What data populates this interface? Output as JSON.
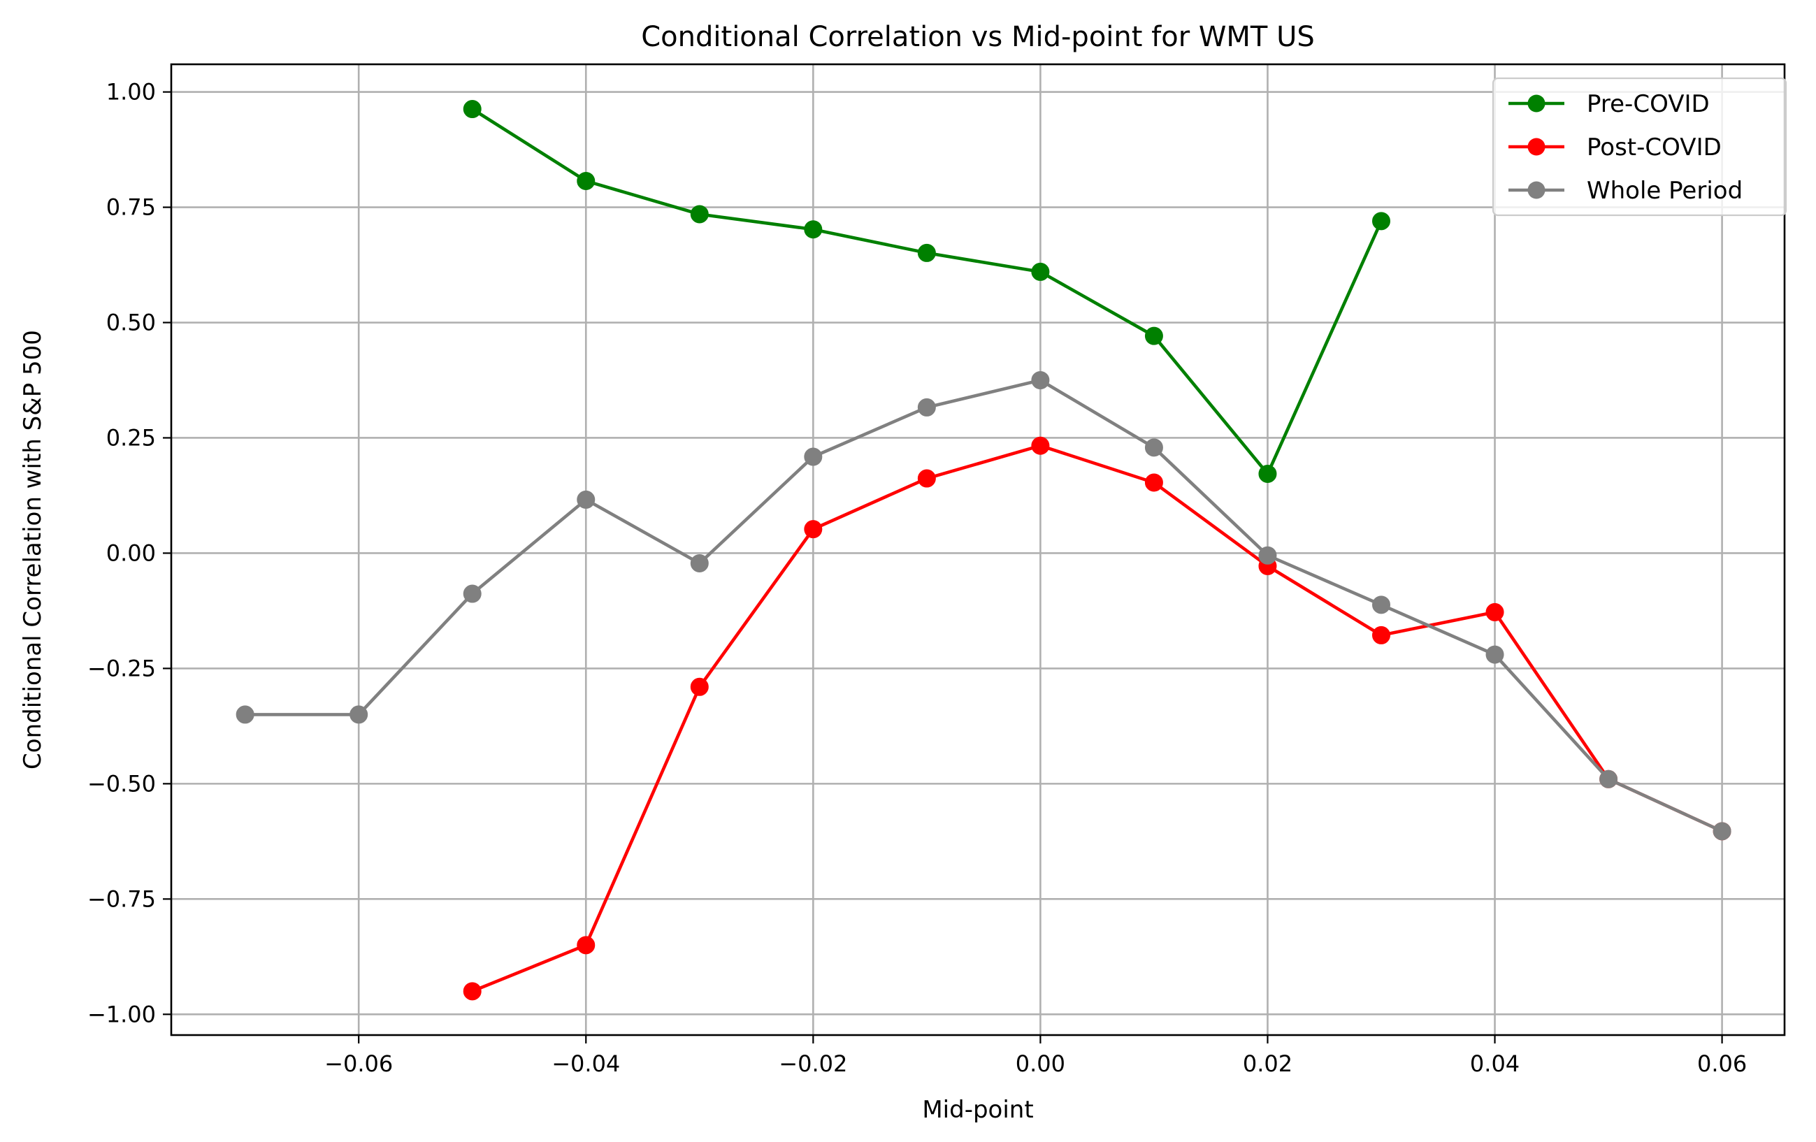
{
  "chart_data": {
    "type": "line",
    "title": "Conditional Correlation vs Mid-point for WMT US",
    "xlabel": "Mid-point",
    "ylabel": "Conditional Correlation with S&P 500",
    "xlim": [
      -0.0765,
      0.0655
    ],
    "ylim": [
      -1.045,
      1.06
    ],
    "xticks": [
      -0.06,
      -0.04,
      -0.02,
      0.0,
      0.02,
      0.04,
      0.06
    ],
    "xtick_labels": [
      "−0.06",
      "−0.04",
      "−0.02",
      "0.00",
      "0.02",
      "0.04",
      "0.06"
    ],
    "yticks": [
      1.0,
      0.75,
      0.5,
      0.25,
      0.0,
      -0.25,
      -0.5,
      -0.75,
      -1.0
    ],
    "ytick_labels": [
      "1.00",
      "0.75",
      "0.50",
      "0.25",
      "0.00",
      "−0.25",
      "−0.50",
      "−0.75",
      "−1.00"
    ],
    "grid": true,
    "legend_position": "top-right",
    "series": [
      {
        "name": "Pre-COVID",
        "color": "#008000",
        "marker": "circle",
        "x": [
          -0.05,
          -0.04,
          -0.03,
          -0.02,
          -0.01,
          0.0,
          0.01,
          0.02,
          0.03
        ],
        "y": [
          0.963,
          0.807,
          0.735,
          0.702,
          0.651,
          0.61,
          0.471,
          0.172,
          0.72
        ]
      },
      {
        "name": "Post-COVID",
        "color": "#ff0000",
        "marker": "circle",
        "x": [
          -0.05,
          -0.04,
          -0.03,
          -0.02,
          -0.01,
          0.0,
          0.01,
          0.02,
          0.03,
          0.04,
          0.05,
          0.06
        ],
        "y": [
          -0.95,
          -0.85,
          -0.29,
          0.052,
          0.162,
          0.233,
          0.153,
          -0.028,
          -0.178,
          -0.128,
          -0.49,
          -0.603
        ]
      },
      {
        "name": "Whole Period",
        "color": "#808080",
        "marker": "circle",
        "x": [
          -0.07,
          -0.06,
          -0.05,
          -0.04,
          -0.03,
          -0.02,
          -0.01,
          0.0,
          0.01,
          0.02,
          0.03,
          0.04,
          0.05,
          0.06
        ],
        "y": [
          -0.35,
          -0.35,
          -0.088,
          0.116,
          -0.022,
          0.209,
          0.316,
          0.375,
          0.229,
          -0.005,
          -0.112,
          -0.22,
          -0.49,
          -0.603
        ]
      }
    ]
  }
}
